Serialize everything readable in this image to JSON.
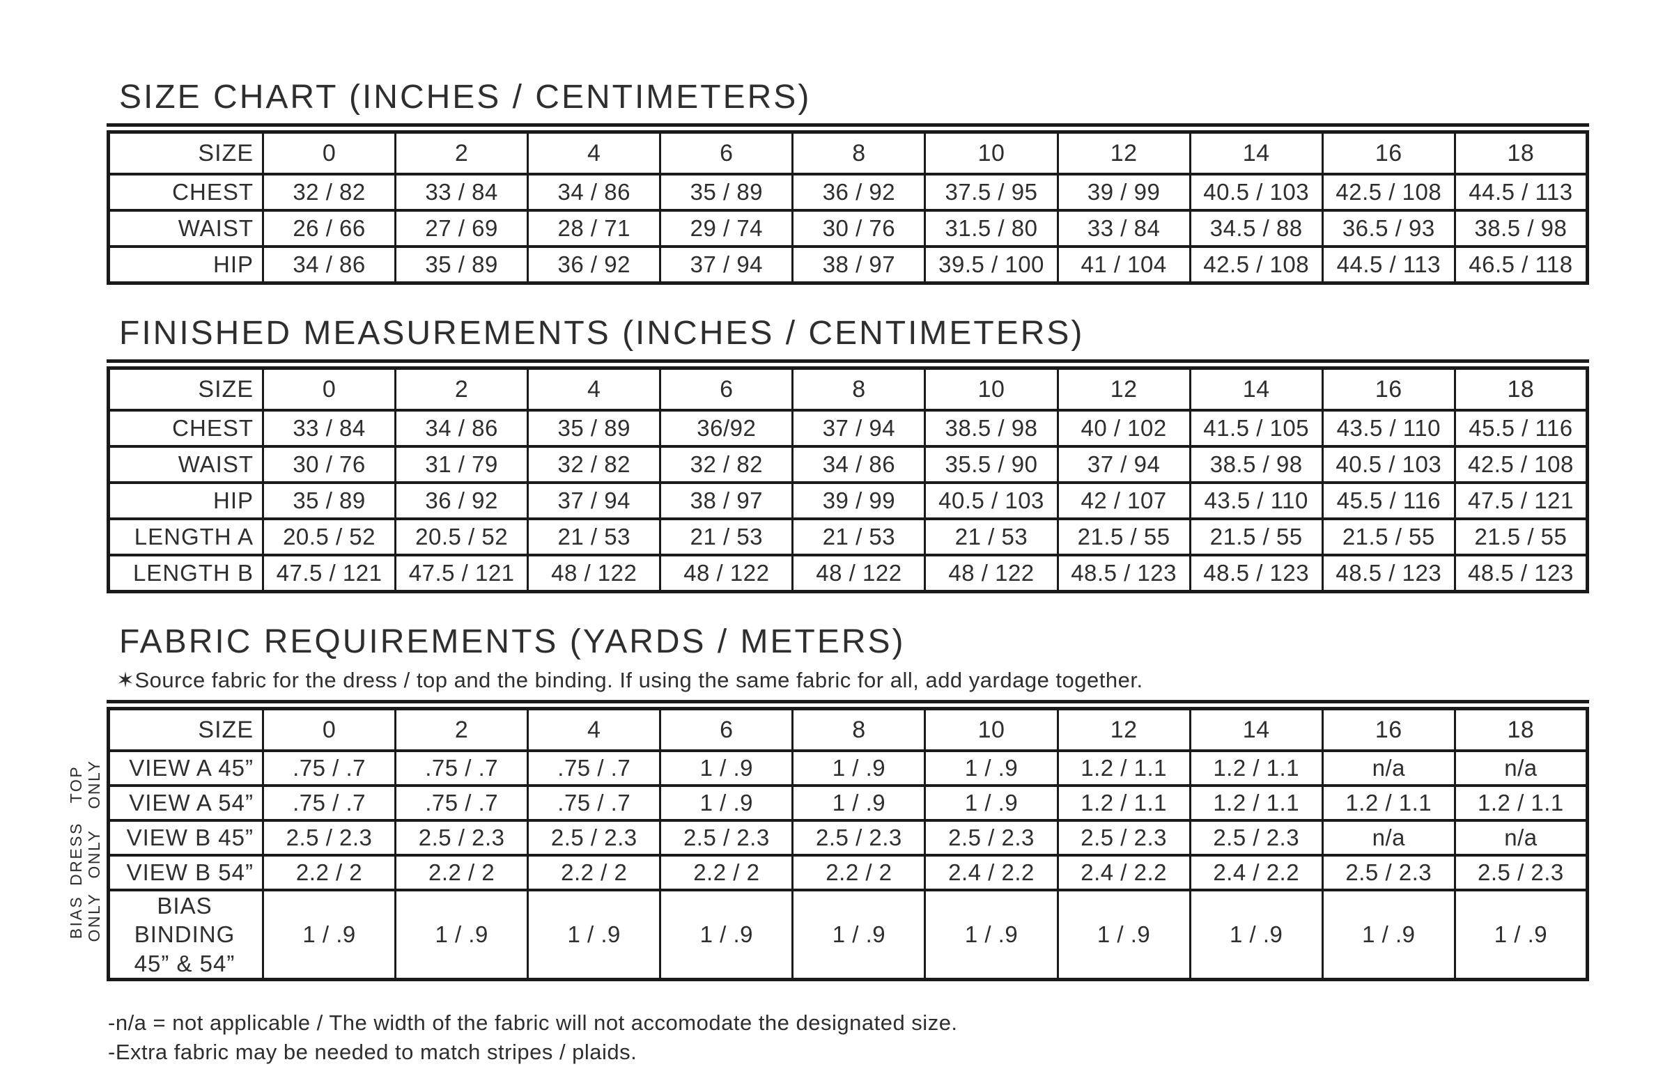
{
  "page": {
    "background_color": "#ffffff",
    "text_color": "#2e2e2e",
    "line_color": "#1a1a1a"
  },
  "sizes": [
    "0",
    "2",
    "4",
    "6",
    "8",
    "10",
    "12",
    "14",
    "16",
    "18"
  ],
  "size_chart": {
    "title": "SIZE CHART (INCHES / CENTIMETERS)",
    "corner_label": "SIZE",
    "rows": [
      {
        "label": "CHEST",
        "values": [
          "32 / 82",
          "33 / 84",
          "34 / 86",
          "35 / 89",
          "36 / 92",
          "37.5 / 95",
          "39 / 99",
          "40.5 / 103",
          "42.5 / 108",
          "44.5 / 113"
        ]
      },
      {
        "label": "WAIST",
        "values": [
          "26 / 66",
          "27 / 69",
          "28 / 71",
          "29 / 74",
          "30 / 76",
          "31.5 / 80",
          "33 / 84",
          "34.5 / 88",
          "36.5 / 93",
          "38.5 / 98"
        ]
      },
      {
        "label": "HIP",
        "values": [
          "34 / 86",
          "35 / 89",
          "36 / 92",
          "37 / 94",
          "38 / 97",
          "39.5 / 100",
          "41 / 104",
          "42.5 / 108",
          "44.5 / 113",
          "46.5 / 118"
        ]
      }
    ]
  },
  "finished_measurements": {
    "title": "FINISHED MEASUREMENTS (INCHES / CENTIMETERS)",
    "corner_label": "SIZE",
    "rows": [
      {
        "label": "CHEST",
        "values": [
          "33 / 84",
          "34 / 86",
          "35 / 89",
          "36/92",
          "37 / 94",
          "38.5 / 98",
          "40 / 102",
          "41.5 / 105",
          "43.5 / 110",
          "45.5 / 116"
        ]
      },
      {
        "label": "WAIST",
        "values": [
          "30 / 76",
          "31 / 79",
          "32 / 82",
          "32 / 82",
          "34 / 86",
          "35.5 / 90",
          "37 / 94",
          "38.5 / 98",
          "40.5 / 103",
          "42.5 / 108"
        ]
      },
      {
        "label": "HIP",
        "values": [
          "35 / 89",
          "36 / 92",
          "37 / 94",
          "38 / 97",
          "39 / 99",
          "40.5 / 103",
          "42 / 107",
          "43.5 / 110",
          "45.5 / 116",
          "47.5 / 121"
        ]
      },
      {
        "label": "LENGTH A",
        "values": [
          "20.5 / 52",
          "20.5 / 52",
          "21 / 53",
          "21 / 53",
          "21 / 53",
          "21 / 53",
          "21.5 / 55",
          "21.5 / 55",
          "21.5 / 55",
          "21.5 / 55"
        ]
      },
      {
        "label": "LENGTH B",
        "values": [
          "47.5 / 121",
          "47.5 / 121",
          "48 / 122",
          "48 / 122",
          "48 / 122",
          "48 / 122",
          "48.5 / 123",
          "48.5 / 123",
          "48.5 / 123",
          "48.5 / 123"
        ]
      }
    ]
  },
  "fabric_requirements": {
    "title": "FABRIC REQUIREMENTS (YARDS / METERS)",
    "note": "✶Source fabric for the dress / top and the binding. If using the same fabric for all, add yardage together.",
    "corner_label": "SIZE",
    "side_groups": [
      {
        "label_lines": [
          "TOP",
          "ONLY"
        ],
        "rows_spanned": 2
      },
      {
        "label_lines": [
          "DRESS",
          "ONLY"
        ],
        "rows_spanned": 2
      },
      {
        "label_lines": [
          "BIAS",
          "ONLY"
        ],
        "rows_spanned": 1
      }
    ],
    "rows": [
      {
        "label_lines": [
          "VIEW A 45”"
        ],
        "values": [
          ".75 / .7",
          ".75 / .7",
          ".75 / .7",
          "1 / .9",
          "1 / .9",
          "1 / .9",
          "1.2 / 1.1",
          "1.2 / 1.1",
          "n/a",
          "n/a"
        ]
      },
      {
        "label_lines": [
          "VIEW A 54”"
        ],
        "values": [
          ".75 / .7",
          ".75 / .7",
          ".75 / .7",
          "1 / .9",
          "1 / .9",
          "1 / .9",
          "1.2 / 1.1",
          "1.2 / 1.1",
          "1.2 / 1.1",
          "1.2 / 1.1"
        ]
      },
      {
        "label_lines": [
          "VIEW B 45”"
        ],
        "values": [
          "2.5 / 2.3",
          "2.5 / 2.3",
          "2.5 / 2.3",
          "2.5 / 2.3",
          "2.5 / 2.3",
          "2.5 / 2.3",
          "2.5 / 2.3",
          "2.5 / 2.3",
          "n/a",
          "n/a"
        ]
      },
      {
        "label_lines": [
          "VIEW B 54”"
        ],
        "values": [
          "2.2 / 2",
          "2.2 / 2",
          "2.2 / 2",
          "2.2 / 2",
          "2.2 / 2",
          "2.4 / 2.2",
          "2.4 / 2.2",
          "2.4 / 2.2",
          "2.5 / 2.3",
          "2.5 / 2.3"
        ]
      },
      {
        "label_lines": [
          "BIAS BINDING",
          "45” & 54”"
        ],
        "values": [
          "1 / .9",
          "1 / .9",
          "1 / .9",
          "1 / .9",
          "1 / .9",
          "1 / .9",
          "1 / .9",
          "1 / .9",
          "1 / .9",
          "1 / .9"
        ]
      }
    ]
  },
  "footnotes": [
    "-n/a = not applicable / The width of the fabric will not accomodate the designated size.",
    "-Extra fabric may be needed to match stripes / plaids."
  ]
}
